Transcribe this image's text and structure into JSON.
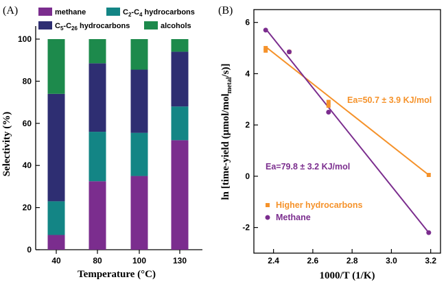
{
  "chart_data": [
    {
      "panel_label": "(A)",
      "type": "bar",
      "stacked": true,
      "categories": [
        "40",
        "80",
        "100",
        "130"
      ],
      "series": [
        {
          "name": "methane",
          "color": "#7b2d8e",
          "values": [
            7,
            32.5,
            35,
            52
          ]
        },
        {
          "name": "C2-C4 hydrocarbons",
          "color": "#138585",
          "values": [
            16,
            23.5,
            20.5,
            16
          ]
        },
        {
          "name": "C5-C26 hydrocarbons",
          "color": "#2e2e72",
          "values": [
            51,
            32.5,
            30,
            26
          ]
        },
        {
          "name": "alcohols",
          "color": "#1d8a4c",
          "values": [
            26,
            11.5,
            14.5,
            6
          ]
        }
      ],
      "legend_labels": [
        {
          "main": "methane",
          "sub": []
        },
        {
          "main": "C2-C4 hydrocarbons",
          "parts": [
            [
              "C",
              ""
            ],
            [
              "2",
              "sub"
            ],
            [
              "-C",
              ""
            ],
            [
              "4",
              "sub"
            ],
            [
              " hydrocarbons",
              ""
            ]
          ]
        },
        {
          "main": "C5-C26 hydrocarbons",
          "parts": [
            [
              "C",
              ""
            ],
            [
              "5",
              "sub"
            ],
            [
              "-C",
              ""
            ],
            [
              "26",
              "sub"
            ],
            [
              " hydrocarbons",
              ""
            ]
          ]
        },
        {
          "main": "alcohols",
          "sub": []
        }
      ],
      "xlabel": "Temperature  (°C)",
      "ylabel": "Selectivity (%)",
      "ylim": [
        0,
        100
      ],
      "yticks": [
        "0",
        "20",
        "40",
        "60",
        "80",
        "100"
      ],
      "legend_position": "top"
    },
    {
      "panel_label": "(B)",
      "type": "scatter",
      "xlabel": "1000/T (1/K)",
      "ylabel": "ln [time-yield (μmol/mol_metal/s)]",
      "xlim": [
        2.3,
        3.25
      ],
      "ylim": [
        -3,
        6.5
      ],
      "xticks": [
        "2.4",
        "2.6",
        "2.8",
        "3.0",
        "3.2"
      ],
      "yticks": [
        "-2",
        "0",
        "2",
        "4",
        "6"
      ],
      "series": [
        {
          "name": "Higher hydrocarbons",
          "color": "#f5922a",
          "marker": "square",
          "points": [
            [
              2.36,
              5.0
            ],
            [
              2.36,
              4.9
            ],
            [
              2.48,
              4.85
            ],
            [
              2.68,
              2.9
            ],
            [
              2.68,
              2.75
            ],
            [
              3.19,
              0.05
            ]
          ],
          "fit": [
            [
              2.36,
              5.05
            ],
            [
              3.19,
              0.05
            ]
          ],
          "annotation": "Ea=50.7 ± 3.9 KJ/mol"
        },
        {
          "name": "Methane",
          "color": "#7b2d8e",
          "marker": "circle",
          "points": [
            [
              2.36,
              5.7
            ],
            [
              2.48,
              4.85
            ],
            [
              2.68,
              2.5
            ],
            [
              3.19,
              -2.2
            ]
          ],
          "fit": [
            [
              2.36,
              5.75
            ],
            [
              3.19,
              -2.2
            ]
          ],
          "annotation": "Ea=79.8 ± 3.2 KJ/mol"
        }
      ],
      "legend_position": "bottom-left"
    }
  ]
}
